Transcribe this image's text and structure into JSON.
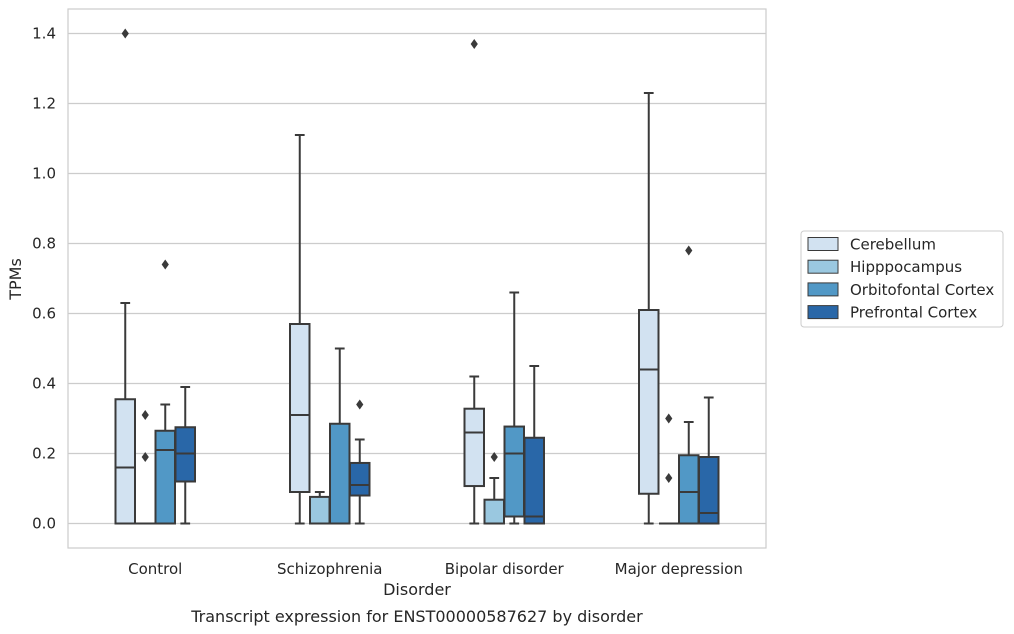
{
  "caption": "Transcript expression for ENST00000587627 by disorder",
  "chart_data": {
    "type": "boxplot",
    "xlabel": "Disorder",
    "ylabel": "TPMs",
    "ylim": [
      -0.07,
      1.47
    ],
    "yticks": [
      "0.0",
      "0.2",
      "0.4",
      "0.6",
      "0.8",
      "1.0",
      "1.2",
      "1.4"
    ],
    "grid": "horizontal",
    "legend_position": "right",
    "categories": [
      "Control",
      "Schizophrenia",
      "Bipolar disorder",
      "Major depression"
    ],
    "series": [
      {
        "name": "Cerebellum",
        "color": "#d2e2f1",
        "boxes": [
          {
            "whislo": 0.0,
            "q1": 0.0,
            "med": 0.16,
            "q3": 0.355,
            "whishi": 0.63,
            "fliers": [
              1.4
            ]
          },
          {
            "whislo": 0.0,
            "q1": 0.09,
            "med": 0.31,
            "q3": 0.57,
            "whishi": 1.11,
            "fliers": []
          },
          {
            "whislo": 0.0,
            "q1": 0.107,
            "med": 0.26,
            "q3": 0.328,
            "whishi": 0.42,
            "fliers": [
              1.37
            ]
          },
          {
            "whislo": 0.0,
            "q1": 0.085,
            "med": 0.44,
            "q3": 0.61,
            "whishi": 1.23,
            "fliers": []
          }
        ]
      },
      {
        "name": "Hipppocampus",
        "color": "#9ac8e0",
        "boxes": [
          {
            "whislo": 0.0,
            "q1": 0.0,
            "med": 0.0,
            "q3": 0.0,
            "whishi": 0.0,
            "fliers": [
              0.19,
              0.31
            ]
          },
          {
            "whislo": 0.0,
            "q1": 0.0,
            "med": 0.0,
            "q3": 0.076,
            "whishi": 0.09,
            "fliers": []
          },
          {
            "whislo": 0.0,
            "q1": 0.0,
            "med": 0.0,
            "q3": 0.068,
            "whishi": 0.13,
            "fliers": [
              0.19
            ]
          },
          {
            "whislo": 0.0,
            "q1": 0.0,
            "med": 0.0,
            "q3": 0.0,
            "whishi": 0.0,
            "fliers": [
              0.13,
              0.3
            ]
          }
        ]
      },
      {
        "name": "Orbitofontal Cortex",
        "color": "#5198c6",
        "boxes": [
          {
            "whislo": 0.0,
            "q1": 0.0,
            "med": 0.21,
            "q3": 0.265,
            "whishi": 0.34,
            "fliers": [
              0.74
            ]
          },
          {
            "whislo": 0.0,
            "q1": 0.0,
            "med": 0.0,
            "q3": 0.285,
            "whishi": 0.5,
            "fliers": []
          },
          {
            "whislo": 0.0,
            "q1": 0.02,
            "med": 0.2,
            "q3": 0.277,
            "whishi": 0.66,
            "fliers": []
          },
          {
            "whislo": 0.0,
            "q1": 0.0,
            "med": 0.09,
            "q3": 0.195,
            "whishi": 0.29,
            "fliers": [
              0.78
            ]
          }
        ]
      },
      {
        "name": "Prefrontal Cortex",
        "color": "#2967a8",
        "boxes": [
          {
            "whislo": 0.0,
            "q1": 0.12,
            "med": 0.2,
            "q3": 0.275,
            "whishi": 0.39,
            "fliers": []
          },
          {
            "whislo": 0.0,
            "q1": 0.08,
            "med": 0.11,
            "q3": 0.173,
            "whishi": 0.24,
            "fliers": [
              0.34
            ]
          },
          {
            "whislo": 0.0,
            "q1": 0.0,
            "med": 0.02,
            "q3": 0.245,
            "whishi": 0.45,
            "fliers": []
          },
          {
            "whislo": 0.0,
            "q1": 0.0,
            "med": 0.03,
            "q3": 0.19,
            "whishi": 0.36,
            "fliers": []
          }
        ]
      }
    ]
  }
}
